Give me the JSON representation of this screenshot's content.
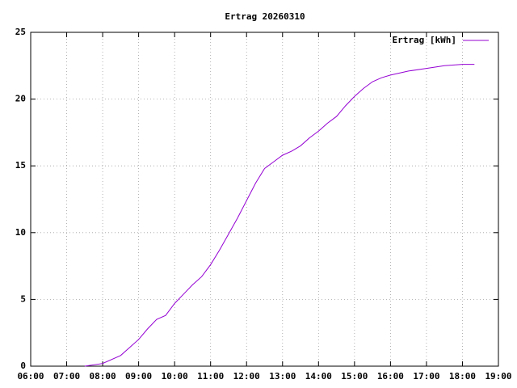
{
  "chart_data": {
    "type": "line",
    "title": "Ertrag 20260310",
    "x": [
      "07:30",
      "08:00",
      "08:30",
      "09:00",
      "09:15",
      "09:30",
      "09:45",
      "10:00",
      "10:15",
      "10:30",
      "10:45",
      "11:00",
      "11:15",
      "11:30",
      "11:45",
      "12:00",
      "12:15",
      "12:30",
      "12:45",
      "13:00",
      "13:15",
      "13:30",
      "13:45",
      "14:00",
      "14:15",
      "14:30",
      "14:45",
      "15:00",
      "15:15",
      "15:30",
      "15:45",
      "16:00",
      "16:30",
      "17:00",
      "17:30",
      "18:00",
      "18:20"
    ],
    "series": [
      {
        "name": "Ertrag [kWh]",
        "color": "#9400d3",
        "values": [
          0.0,
          0.2,
          0.8,
          2.0,
          2.8,
          3.5,
          3.8,
          4.7,
          5.4,
          6.1,
          6.7,
          7.6,
          8.7,
          9.9,
          11.1,
          12.4,
          13.7,
          14.8,
          15.3,
          15.8,
          16.1,
          16.5,
          17.1,
          17.6,
          18.2,
          18.7,
          19.5,
          20.2,
          20.8,
          21.3,
          21.6,
          21.8,
          22.1,
          22.3,
          22.5,
          22.6,
          22.6
        ]
      }
    ],
    "xlim": [
      "06:00",
      "19:00"
    ],
    "xticks": [
      "06:00",
      "07:00",
      "08:00",
      "09:00",
      "10:00",
      "11:00",
      "12:00",
      "13:00",
      "14:00",
      "15:00",
      "16:00",
      "17:00",
      "18:00",
      "19:00"
    ],
    "ylim": [
      0,
      25
    ],
    "yticks": [
      0,
      5,
      10,
      15,
      20,
      25
    ],
    "grid": true,
    "legend": "top-right"
  }
}
